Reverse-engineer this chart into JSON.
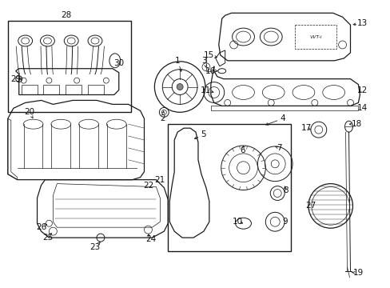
{
  "bg_color": "#ffffff",
  "line_color": "#1a1a1a",
  "fig_width": 4.89,
  "fig_height": 3.6,
  "dpi": 100,
  "gray": "#555555",
  "light_gray": "#888888"
}
